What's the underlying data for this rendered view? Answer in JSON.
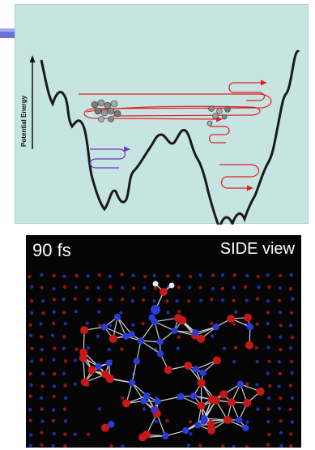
{
  "energy_diagram": {
    "y_axis_label": "Potential Energy",
    "colors": {
      "panel_bg": "#c5e4e2",
      "surface_curve": "#1a1a1a",
      "high_energy_path": "#e02020",
      "low_energy_path": "#6a3bc0",
      "accent": "#5a5ad6"
    }
  },
  "md_snapshot": {
    "time_label": "90 fs",
    "view_label": "SIDE view",
    "colors": {
      "background": "#050505",
      "atom_a": "#2a3bd8",
      "atom_b": "#c81818",
      "bond": "#d0d0d0",
      "adsorbate_h": "#e8e8e8"
    }
  }
}
